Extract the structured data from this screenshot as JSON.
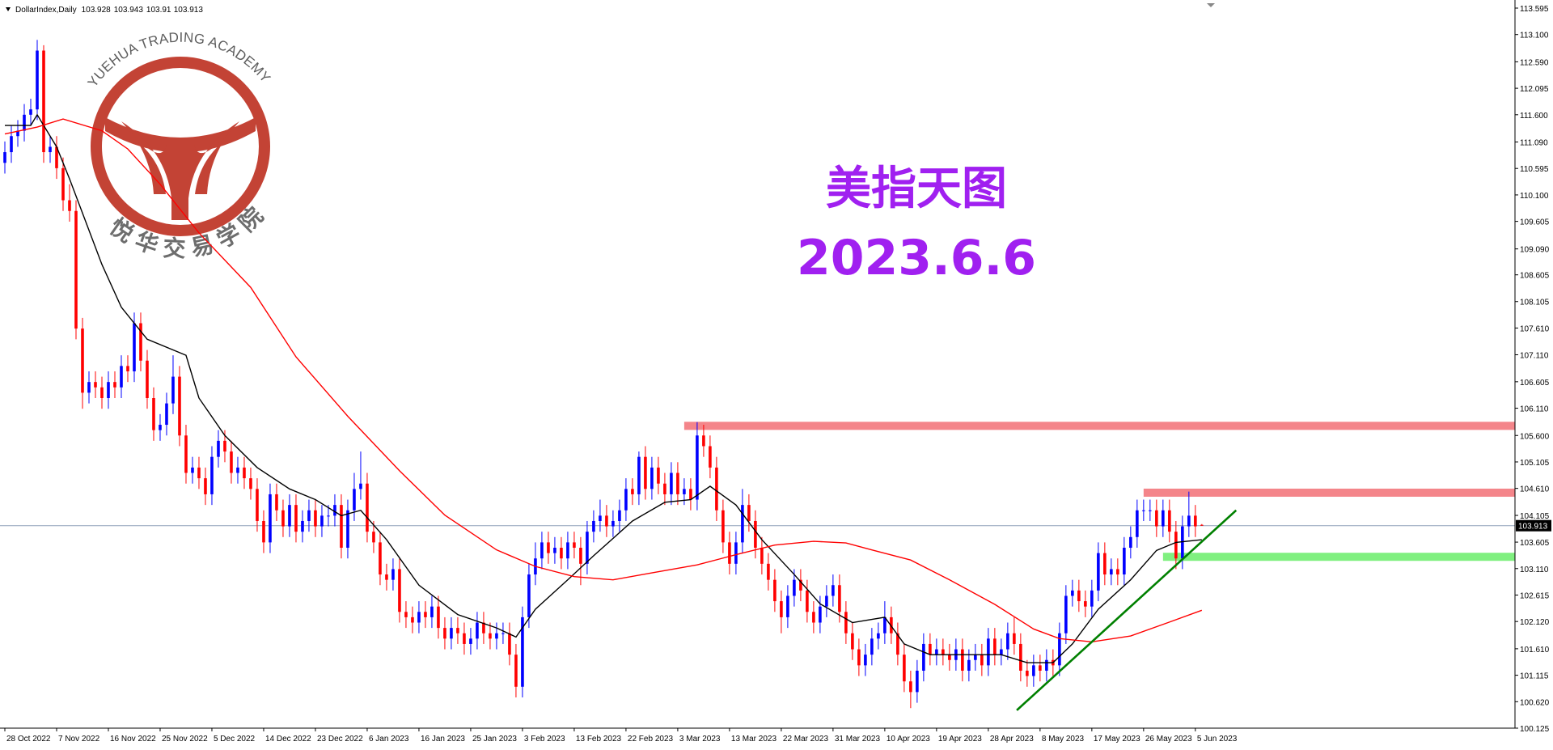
{
  "chart_data": {
    "type": "candlestick",
    "title": "DollarIndex,Daily",
    "categories": [
      "28 Oct 2022",
      null,
      null,
      null,
      null,
      null,
      null,
      null,
      "7 Nov 2022",
      null,
      null,
      null,
      null,
      null,
      null,
      null,
      "16 Nov 2022",
      null,
      null,
      null,
      null,
      null,
      null,
      null,
      "25 Nov 2022",
      null,
      null,
      null,
      null,
      null,
      null,
      null,
      "5 Dec 2022",
      null,
      null,
      null,
      null,
      null,
      null,
      null,
      "14 Dec 2022",
      null,
      null,
      null,
      null,
      null,
      null,
      null,
      "23 Dec 2022",
      null,
      null,
      null,
      null,
      null,
      null,
      null,
      "6 Jan 2023",
      null,
      null,
      null,
      null,
      null,
      null,
      null,
      "16 Jan 2023",
      null,
      null,
      null,
      null,
      null,
      null,
      null,
      "25 Jan 2023",
      null,
      null,
      null,
      null,
      null,
      null,
      null,
      "3 Feb 2023",
      null,
      null,
      null,
      null,
      null,
      null,
      null,
      "13 Feb 2023",
      null,
      null,
      null,
      null,
      null,
      null,
      null,
      "22 Feb 2023",
      null,
      null,
      null,
      null,
      null,
      null,
      null,
      "3 Mar 2023",
      null,
      null,
      null,
      null,
      null,
      null,
      null,
      "13 Mar 2023",
      null,
      null,
      null,
      null,
      null,
      null,
      null,
      "22 Mar 2023",
      null,
      null,
      null,
      null,
      null,
      null,
      null,
      "31 Mar 2023",
      null,
      null,
      null,
      null,
      null,
      null,
      null,
      "10 Apr 2023",
      null,
      null,
      null,
      null,
      null,
      null,
      null,
      "19 Apr 2023",
      null,
      null,
      null,
      null,
      null,
      null,
      null,
      "28 Apr 2023",
      null,
      null,
      null,
      null,
      null,
      null,
      null,
      "8 May 2023",
      null,
      null,
      null,
      null,
      null,
      null,
      null,
      "17 May 2023",
      null,
      null,
      null,
      null,
      null,
      null,
      null,
      "26 May 2023",
      null,
      null,
      null,
      null,
      null,
      null,
      null,
      "5 Jun 2023",
      null
    ],
    "open": [
      110.7,
      110.9,
      111.2,
      111.3,
      111.6,
      111.7,
      112.8,
      110.9,
      111.0,
      110.6,
      110.0,
      109.8,
      107.6,
      106.4,
      106.6,
      106.5,
      106.3,
      106.6,
      106.5,
      106.9,
      106.8,
      107.7,
      107.0,
      106.3,
      105.7,
      105.8,
      106.2,
      106.7,
      105.6,
      104.9,
      105.0,
      104.8,
      104.5,
      105.2,
      105.5,
      105.3,
      104.9,
      105.0,
      104.8,
      104.6,
      104.0,
      103.6,
      104.5,
      104.2,
      103.9,
      104.3,
      103.8,
      104.0,
      104.2,
      103.9,
      104.1,
      104.1,
      104.3,
      103.5,
      104.2,
      104.6,
      104.7,
      103.8,
      103.6,
      103.0,
      102.9,
      103.1,
      102.3,
      102.2,
      102.1,
      102.3,
      102.2,
      102.4,
      102.0,
      101.8,
      102.0,
      101.9,
      101.7,
      101.8,
      102.1,
      101.9,
      101.8,
      101.9,
      101.9,
      101.5,
      100.9,
      102.2,
      103.0,
      103.3,
      103.6,
      103.4,
      103.5,
      103.3,
      103.6,
      103.5,
      103.2,
      103.8,
      104.0,
      104.1,
      103.9,
      104.0,
      104.2,
      104.6,
      104.5,
      105.2,
      104.6,
      105.0,
      104.7,
      104.5,
      104.9,
      104.5,
      104.6,
      104.4,
      105.6,
      105.4,
      105.0,
      104.2,
      103.6,
      103.2,
      103.6,
      104.3,
      104.0,
      103.5,
      103.2,
      102.9,
      102.5,
      102.2,
      102.6,
      102.9,
      102.7,
      102.3,
      102.1,
      102.4,
      102.6,
      102.8,
      102.3,
      101.9,
      101.6,
      101.3,
      101.5,
      101.8,
      101.9,
      102.2,
      101.9,
      101.5,
      101.0,
      100.8,
      101.2,
      101.7,
      101.5,
      101.6,
      101.5,
      101.4,
      101.6,
      101.2,
      101.4,
      101.5,
      101.3,
      101.8,
      101.5,
      101.6,
      101.9,
      101.7,
      101.2,
      101.1,
      101.3,
      101.2,
      101.4,
      101.3,
      101.9,
      102.6,
      102.7,
      102.5,
      102.4,
      102.7,
      103.4,
      103.0,
      103.1,
      103.0,
      103.5,
      103.7,
      104.2,
      104.2,
      104.2,
      103.9,
      104.2,
      103.8,
      103.3,
      103.9,
      104.1,
      103.928
    ],
    "high": [
      111.1,
      111.4,
      111.5,
      111.8,
      111.9,
      113.0,
      112.9,
      111.2,
      111.2,
      110.8,
      110.3,
      110.0,
      107.8,
      106.8,
      106.8,
      106.7,
      106.8,
      106.8,
      107.1,
      107.1,
      107.9,
      107.9,
      107.2,
      106.5,
      106.0,
      106.4,
      107.1,
      106.9,
      105.8,
      105.2,
      105.2,
      105.0,
      105.4,
      105.7,
      105.7,
      105.5,
      105.2,
      105.2,
      105.0,
      104.8,
      104.2,
      104.7,
      104.7,
      104.4,
      104.5,
      104.5,
      104.2,
      104.4,
      104.4,
      104.3,
      104.3,
      104.5,
      104.5,
      104.4,
      104.9,
      105.3,
      104.9,
      104.0,
      103.8,
      103.2,
      103.3,
      103.3,
      102.5,
      102.4,
      102.5,
      102.5,
      102.6,
      102.6,
      102.2,
      102.2,
      102.2,
      102.1,
      102.0,
      102.3,
      102.3,
      102.1,
      102.1,
      102.1,
      102.1,
      101.7,
      102.4,
      103.2,
      103.6,
      103.8,
      103.8,
      103.7,
      103.7,
      103.8,
      103.8,
      103.7,
      104.0,
      104.2,
      104.4,
      104.3,
      104.2,
      104.4,
      104.8,
      104.8,
      105.3,
      105.4,
      105.2,
      105.2,
      104.9,
      105.1,
      105.1,
      104.8,
      104.8,
      105.85,
      105.8,
      105.6,
      105.2,
      104.4,
      103.8,
      103.8,
      104.6,
      104.5,
      104.2,
      103.7,
      103.4,
      103.1,
      102.7,
      102.8,
      103.1,
      103.1,
      102.9,
      102.5,
      102.6,
      102.8,
      103.0,
      103.0,
      102.5,
      102.1,
      101.8,
      101.7,
      102.0,
      102.1,
      102.5,
      102.4,
      102.1,
      101.7,
      101.2,
      101.4,
      101.9,
      101.9,
      101.8,
      101.8,
      101.7,
      101.8,
      101.8,
      101.6,
      101.7,
      101.7,
      102.0,
      102.0,
      101.8,
      102.1,
      102.2,
      101.9,
      101.4,
      101.5,
      101.5,
      101.6,
      101.6,
      102.1,
      102.8,
      102.9,
      102.9,
      102.7,
      102.9,
      103.6,
      103.6,
      103.3,
      103.3,
      103.7,
      103.9,
      104.4,
      104.4,
      104.4,
      104.4,
      104.4,
      104.4,
      104.0,
      104.1,
      104.55,
      104.3,
      103.943
    ],
    "low": [
      110.5,
      110.7,
      111.0,
      111.1,
      111.4,
      111.5,
      110.7,
      110.7,
      110.4,
      109.8,
      109.6,
      107.4,
      106.1,
      106.2,
      106.3,
      106.1,
      106.1,
      106.3,
      106.3,
      106.6,
      106.6,
      106.8,
      106.1,
      105.5,
      105.5,
      105.6,
      106.0,
      105.4,
      104.7,
      104.7,
      104.6,
      104.3,
      104.3,
      105.0,
      105.1,
      104.7,
      104.7,
      104.6,
      104.4,
      103.8,
      103.4,
      103.4,
      104.0,
      103.7,
      103.7,
      103.6,
      103.6,
      103.8,
      103.7,
      103.7,
      103.9,
      103.9,
      103.3,
      103.3,
      104.0,
      104.4,
      103.6,
      103.4,
      102.8,
      102.7,
      102.7,
      102.1,
      102.0,
      101.9,
      101.9,
      102.0,
      102.0,
      101.8,
      101.6,
      101.6,
      101.7,
      101.5,
      101.5,
      101.6,
      101.7,
      101.6,
      101.6,
      101.7,
      101.3,
      100.7,
      100.7,
      102.0,
      102.8,
      103.1,
      103.2,
      103.2,
      103.1,
      103.1,
      103.3,
      102.8,
      103.0,
      103.6,
      103.8,
      103.7,
      103.7,
      103.8,
      104.0,
      104.3,
      104.3,
      104.4,
      104.4,
      104.5,
      104.3,
      104.3,
      104.3,
      104.3,
      104.2,
      104.2,
      105.2,
      104.8,
      104.0,
      103.4,
      103.0,
      103.0,
      103.4,
      103.8,
      103.3,
      103.0,
      102.7,
      102.3,
      101.9,
      102.0,
      102.4,
      102.5,
      102.1,
      101.9,
      101.9,
      102.2,
      102.4,
      102.1,
      101.7,
      101.4,
      101.1,
      101.1,
      101.3,
      101.6,
      101.7,
      101.7,
      101.3,
      100.8,
      100.5,
      100.6,
      101.0,
      101.3,
      101.3,
      101.3,
      101.2,
      101.2,
      101.0,
      101.0,
      101.2,
      101.1,
      101.1,
      101.3,
      101.3,
      101.4,
      101.5,
      101.0,
      100.9,
      100.9,
      101.0,
      101.0,
      101.1,
      101.1,
      101.7,
      102.4,
      102.3,
      102.2,
      102.2,
      102.5,
      102.8,
      102.8,
      102.8,
      102.8,
      103.3,
      103.5,
      104.0,
      104.0,
      103.7,
      103.7,
      103.6,
      103.1,
      103.1,
      103.7,
      103.7,
      103.91
    ],
    "close": [
      110.9,
      111.2,
      111.3,
      111.6,
      111.7,
      112.8,
      110.9,
      111.0,
      110.6,
      110.0,
      109.8,
      107.6,
      106.4,
      106.6,
      106.5,
      106.3,
      106.6,
      106.5,
      106.9,
      106.8,
      107.7,
      107.0,
      106.3,
      105.7,
      105.8,
      106.2,
      106.7,
      105.6,
      104.9,
      105.0,
      104.8,
      104.5,
      105.2,
      105.5,
      105.3,
      104.9,
      105.0,
      104.8,
      104.6,
      104.0,
      103.6,
      104.5,
      104.2,
      103.9,
      104.3,
      103.8,
      104.0,
      104.2,
      103.9,
      104.1,
      104.1,
      104.3,
      103.5,
      104.2,
      104.6,
      104.7,
      103.8,
      103.6,
      103.0,
      102.9,
      103.1,
      102.3,
      102.2,
      102.1,
      102.3,
      102.2,
      102.4,
      102.0,
      101.8,
      102.0,
      101.9,
      101.7,
      101.8,
      102.1,
      101.9,
      101.8,
      101.9,
      101.9,
      101.5,
      100.9,
      102.2,
      103.0,
      103.3,
      103.6,
      103.4,
      103.5,
      103.3,
      103.6,
      103.5,
      103.2,
      103.8,
      104.0,
      104.1,
      103.9,
      104.0,
      104.2,
      104.6,
      104.5,
      105.2,
      104.6,
      105.0,
      104.7,
      104.5,
      104.9,
      104.5,
      104.6,
      104.4,
      105.6,
      105.4,
      105.0,
      104.2,
      103.6,
      103.2,
      103.6,
      104.3,
      104.0,
      103.5,
      103.2,
      102.9,
      102.5,
      102.2,
      102.6,
      102.9,
      102.7,
      102.3,
      102.1,
      102.4,
      102.6,
      102.8,
      102.3,
      101.9,
      101.6,
      101.3,
      101.5,
      101.8,
      101.9,
      102.2,
      101.9,
      101.5,
      101.0,
      100.8,
      101.2,
      101.7,
      101.5,
      101.6,
      101.5,
      101.4,
      101.6,
      101.2,
      101.4,
      101.5,
      101.3,
      101.8,
      101.5,
      101.6,
      101.9,
      101.7,
      101.2,
      101.1,
      101.3,
      101.2,
      101.4,
      101.3,
      101.9,
      102.6,
      102.7,
      102.5,
      102.4,
      102.7,
      103.4,
      103.0,
      103.1,
      103.0,
      103.5,
      103.7,
      104.2,
      104.2,
      104.2,
      103.9,
      104.2,
      103.8,
      103.3,
      103.9,
      104.1,
      103.9,
      103.913
    ],
    "up_color": "#0000ff",
    "down_color": "#ff0000",
    "xlim": [
      -0.75,
      233.4
    ],
    "ylim": [
      100.125,
      113.595
    ],
    "yticks": [
      113.595,
      {
        "value": 113.1,
        "label": "113.100"
      },
      {
        "value": 112.59,
        "label": "112.590"
      },
      112.095,
      {
        "value": 111.6,
        "label": "111.600"
      },
      {
        "value": 111.09,
        "label": "111.090"
      },
      110.595,
      {
        "value": 110.1,
        "label": "110.100"
      },
      109.605,
      {
        "value": 109.09,
        "label": "109.090"
      },
      108.605,
      108.105,
      {
        "value": 107.61,
        "label": "107.610"
      },
      {
        "value": 107.11,
        "label": "107.110"
      },
      106.605,
      {
        "value": 106.11,
        "label": "106.110"
      },
      {
        "value": 105.6,
        "label": "105.600"
      },
      105.105,
      {
        "value": 104.61,
        "label": "104.610"
      },
      104.105,
      103.605,
      {
        "value": 103.11,
        "label": "103.110"
      },
      102.615,
      {
        "value": 102.12,
        "label": "102.120"
      },
      {
        "value": 101.61,
        "label": "101.610"
      },
      101.115,
      {
        "value": 100.62,
        "label": "100.620"
      },
      100.125
    ],
    "lines": [
      {
        "color": "#000000",
        "x": [
          0,
          4,
          5,
          8,
          10,
          15,
          18,
          22,
          28,
          30,
          34,
          39,
          44,
          48,
          52,
          55,
          59,
          64,
          70,
          76,
          79,
          82,
          87,
          91,
          97,
          102,
          106,
          109,
          113,
          117,
          122,
          126,
          131,
          136,
          139,
          143,
          149,
          154,
          158,
          162,
          165,
          169,
          174,
          178,
          181,
          185
        ],
        "values": [
          111.4,
          111.4,
          111.6,
          111.0,
          110.4,
          108.8,
          108.0,
          107.4,
          107.1,
          106.3,
          105.6,
          105.0,
          104.6,
          104.4,
          104.1,
          104.2,
          103.65,
          102.8,
          102.25,
          102.0,
          101.83,
          102.35,
          102.9,
          103.35,
          104.0,
          104.35,
          104.4,
          104.65,
          104.3,
          103.65,
          103.0,
          102.45,
          102.1,
          102.2,
          101.7,
          101.5,
          101.5,
          101.5,
          101.35,
          101.35,
          101.7,
          102.35,
          102.9,
          103.45,
          103.6,
          103.65
        ]
      },
      {
        "color": "#ff0000",
        "x": [
          0,
          5,
          9,
          15,
          19,
          24,
          30,
          38,
          45,
          53,
          61,
          68,
          76,
          82,
          88,
          94,
          100,
          107,
          113,
          119,
          125,
          130,
          134,
          140,
          146,
          153,
          159,
          163,
          168,
          174,
          180,
          185
        ],
        "values": [
          111.24,
          111.37,
          111.52,
          111.3,
          110.96,
          110.3,
          109.39,
          108.37,
          107.07,
          105.96,
          104.94,
          104.11,
          103.46,
          103.15,
          102.96,
          102.9,
          103.03,
          103.18,
          103.37,
          103.55,
          103.62,
          103.59,
          103.46,
          103.27,
          102.9,
          102.44,
          101.98,
          101.8,
          101.74,
          101.85,
          102.11,
          102.33
        ]
      },
      {
        "color": "#008000",
        "x": [
          156.4,
          190.3
        ],
        "values": [
          100.46,
          104.2
        ]
      }
    ],
    "levels": [
      {
        "color": "#f4858a",
        "x_start": 105,
        "value": 105.78
      },
      {
        "color": "#f4858a",
        "x_start": 176,
        "value": 104.53
      },
      {
        "color": "#80f080",
        "x_start": 179,
        "value": 103.33
      }
    ],
    "annotations": [
      "美指天图",
      "2023.6.6"
    ],
    "watermark": [
      "YUEHUA TRADING ACADEMY",
      "悦华交易学院"
    ]
  }
}
